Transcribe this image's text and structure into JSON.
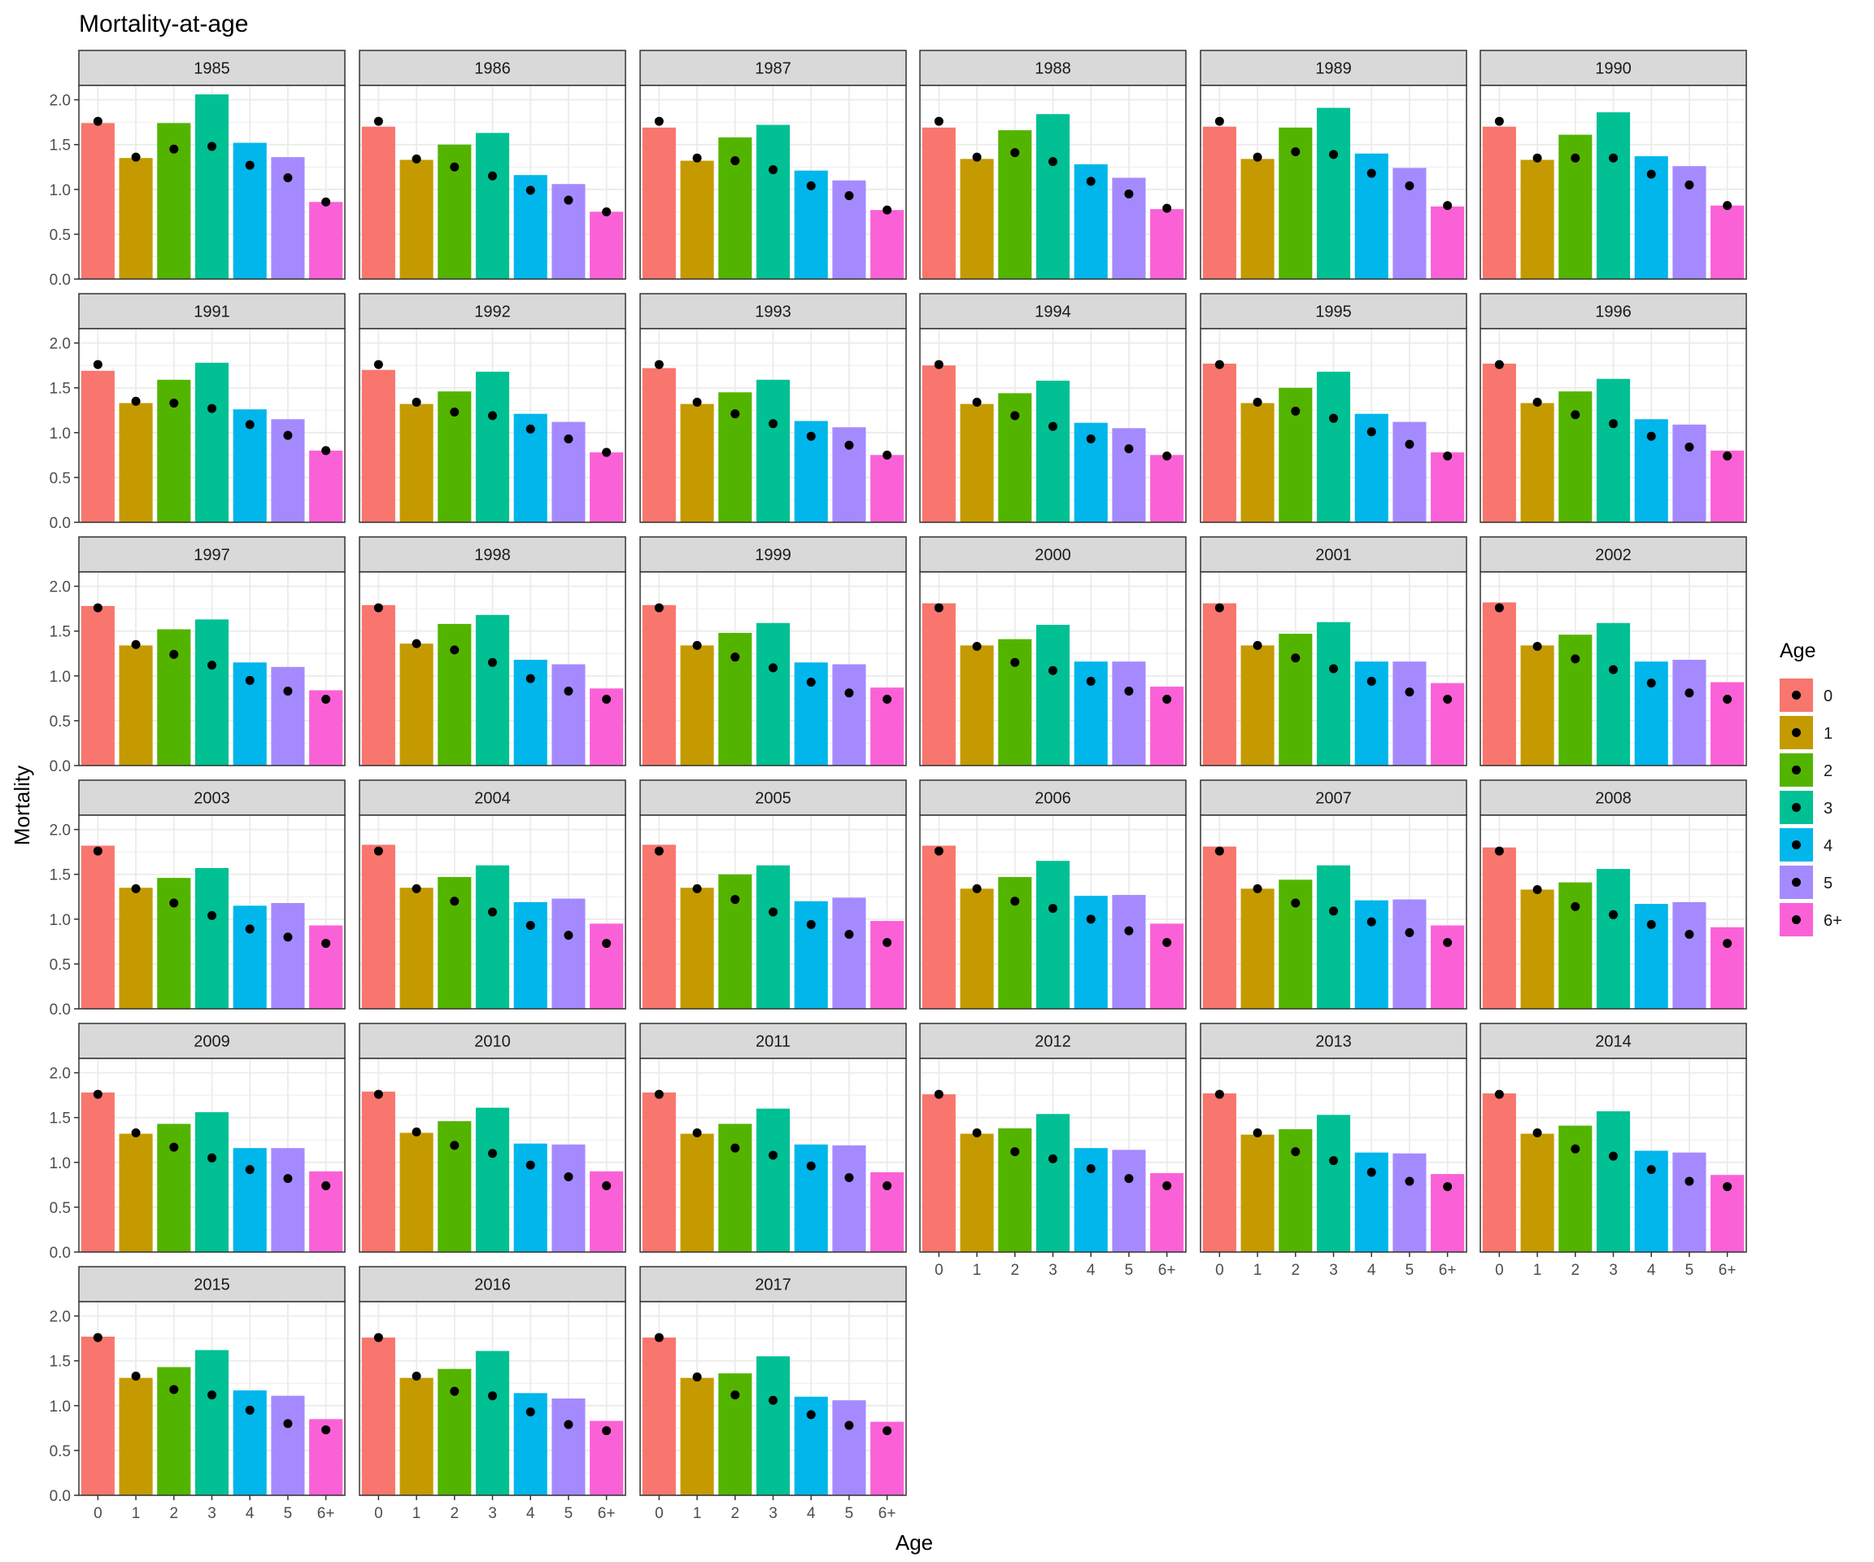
{
  "chart_data": {
    "type": "bar",
    "title": "Mortality-at-age",
    "xlabel": "Age",
    "ylabel": "Mortality",
    "ylim": [
      0,
      2.16
    ],
    "yticks": [
      "0.0",
      "0.5",
      "1.0",
      "1.5",
      "2.0"
    ],
    "categories": [
      "0",
      "1",
      "2",
      "3",
      "4",
      "5",
      "6+"
    ],
    "legend": {
      "title": "Age",
      "position": "right",
      "entries": [
        "0",
        "1",
        "2",
        "3",
        "4",
        "5",
        "6+"
      ]
    },
    "colors": [
      "#F8766D",
      "#C49A00",
      "#53B400",
      "#00C094",
      "#00B6EB",
      "#A58AFF",
      "#FB61D7"
    ],
    "point_color": "#000000",
    "grid": true,
    "facets": [
      {
        "label": "1985",
        "bars": [
          1.74,
          1.35,
          1.74,
          2.06,
          1.52,
          1.36,
          0.86
        ],
        "points": [
          1.76,
          1.36,
          1.45,
          1.48,
          1.27,
          1.13,
          0.86
        ]
      },
      {
        "label": "1986",
        "bars": [
          1.7,
          1.33,
          1.5,
          1.63,
          1.16,
          1.06,
          0.75
        ],
        "points": [
          1.76,
          1.34,
          1.25,
          1.15,
          0.99,
          0.88,
          0.75
        ]
      },
      {
        "label": "1987",
        "bars": [
          1.69,
          1.32,
          1.58,
          1.72,
          1.21,
          1.1,
          0.77
        ],
        "points": [
          1.76,
          1.35,
          1.32,
          1.22,
          1.04,
          0.93,
          0.77
        ]
      },
      {
        "label": "1988",
        "bars": [
          1.69,
          1.34,
          1.66,
          1.84,
          1.28,
          1.13,
          0.78
        ],
        "points": [
          1.76,
          1.36,
          1.41,
          1.31,
          1.09,
          0.95,
          0.79
        ]
      },
      {
        "label": "1989",
        "bars": [
          1.7,
          1.34,
          1.69,
          1.91,
          1.4,
          1.24,
          0.81
        ],
        "points": [
          1.76,
          1.36,
          1.42,
          1.39,
          1.18,
          1.04,
          0.82
        ]
      },
      {
        "label": "1990",
        "bars": [
          1.7,
          1.33,
          1.61,
          1.86,
          1.37,
          1.26,
          0.82
        ],
        "points": [
          1.76,
          1.35,
          1.35,
          1.35,
          1.17,
          1.05,
          0.82
        ]
      },
      {
        "label": "1991",
        "bars": [
          1.69,
          1.33,
          1.59,
          1.78,
          1.26,
          1.15,
          0.8
        ],
        "points": [
          1.76,
          1.35,
          1.33,
          1.27,
          1.09,
          0.97,
          0.8
        ]
      },
      {
        "label": "1992",
        "bars": [
          1.7,
          1.32,
          1.46,
          1.68,
          1.21,
          1.12,
          0.78
        ],
        "points": [
          1.76,
          1.34,
          1.23,
          1.19,
          1.04,
          0.93,
          0.78
        ]
      },
      {
        "label": "1993",
        "bars": [
          1.72,
          1.32,
          1.45,
          1.59,
          1.13,
          1.06,
          0.75
        ],
        "points": [
          1.76,
          1.34,
          1.21,
          1.1,
          0.96,
          0.86,
          0.75
        ]
      },
      {
        "label": "1994",
        "bars": [
          1.75,
          1.32,
          1.44,
          1.58,
          1.11,
          1.05,
          0.75
        ],
        "points": [
          1.76,
          1.34,
          1.19,
          1.07,
          0.93,
          0.82,
          0.74
        ]
      },
      {
        "label": "1995",
        "bars": [
          1.77,
          1.33,
          1.5,
          1.68,
          1.21,
          1.12,
          0.78
        ],
        "points": [
          1.76,
          1.34,
          1.24,
          1.16,
          1.01,
          0.87,
          0.74
        ]
      },
      {
        "label": "1996",
        "bars": [
          1.77,
          1.33,
          1.46,
          1.6,
          1.15,
          1.09,
          0.8
        ],
        "points": [
          1.76,
          1.34,
          1.2,
          1.1,
          0.96,
          0.84,
          0.74
        ]
      },
      {
        "label": "1997",
        "bars": [
          1.78,
          1.34,
          1.52,
          1.63,
          1.15,
          1.1,
          0.84
        ],
        "points": [
          1.76,
          1.35,
          1.24,
          1.12,
          0.95,
          0.83,
          0.74
        ]
      },
      {
        "label": "1998",
        "bars": [
          1.79,
          1.36,
          1.58,
          1.68,
          1.18,
          1.13,
          0.86
        ],
        "points": [
          1.76,
          1.36,
          1.29,
          1.15,
          0.97,
          0.83,
          0.74
        ]
      },
      {
        "label": "1999",
        "bars": [
          1.79,
          1.34,
          1.48,
          1.59,
          1.15,
          1.13,
          0.87
        ],
        "points": [
          1.76,
          1.34,
          1.21,
          1.09,
          0.93,
          0.81,
          0.74
        ]
      },
      {
        "label": "2000",
        "bars": [
          1.81,
          1.34,
          1.41,
          1.57,
          1.16,
          1.16,
          0.88
        ],
        "points": [
          1.76,
          1.33,
          1.15,
          1.06,
          0.94,
          0.83,
          0.74
        ]
      },
      {
        "label": "2001",
        "bars": [
          1.81,
          1.34,
          1.47,
          1.6,
          1.16,
          1.16,
          0.92
        ],
        "points": [
          1.76,
          1.34,
          1.2,
          1.08,
          0.94,
          0.82,
          0.74
        ]
      },
      {
        "label": "2002",
        "bars": [
          1.82,
          1.34,
          1.46,
          1.59,
          1.16,
          1.18,
          0.93
        ],
        "points": [
          1.76,
          1.33,
          1.19,
          1.07,
          0.92,
          0.81,
          0.74
        ]
      },
      {
        "label": "2003",
        "bars": [
          1.82,
          1.35,
          1.46,
          1.57,
          1.15,
          1.18,
          0.93
        ],
        "points": [
          1.76,
          1.34,
          1.18,
          1.04,
          0.89,
          0.8,
          0.73
        ]
      },
      {
        "label": "2004",
        "bars": [
          1.83,
          1.35,
          1.47,
          1.6,
          1.19,
          1.23,
          0.95
        ],
        "points": [
          1.76,
          1.34,
          1.2,
          1.08,
          0.93,
          0.82,
          0.73
        ]
      },
      {
        "label": "2005",
        "bars": [
          1.83,
          1.35,
          1.5,
          1.6,
          1.2,
          1.24,
          0.98
        ],
        "points": [
          1.76,
          1.34,
          1.22,
          1.08,
          0.94,
          0.83,
          0.74
        ]
      },
      {
        "label": "2006",
        "bars": [
          1.82,
          1.34,
          1.47,
          1.65,
          1.26,
          1.27,
          0.95
        ],
        "points": [
          1.76,
          1.34,
          1.2,
          1.12,
          1.0,
          0.87,
          0.74
        ]
      },
      {
        "label": "2007",
        "bars": [
          1.81,
          1.34,
          1.44,
          1.6,
          1.21,
          1.22,
          0.93
        ],
        "points": [
          1.76,
          1.34,
          1.18,
          1.09,
          0.97,
          0.85,
          0.74
        ]
      },
      {
        "label": "2008",
        "bars": [
          1.8,
          1.33,
          1.41,
          1.56,
          1.17,
          1.19,
          0.91
        ],
        "points": [
          1.76,
          1.33,
          1.14,
          1.05,
          0.94,
          0.83,
          0.73
        ]
      },
      {
        "label": "2009",
        "bars": [
          1.78,
          1.32,
          1.43,
          1.56,
          1.16,
          1.16,
          0.9
        ],
        "points": [
          1.76,
          1.33,
          1.17,
          1.05,
          0.92,
          0.82,
          0.74
        ]
      },
      {
        "label": "2010",
        "bars": [
          1.79,
          1.33,
          1.46,
          1.61,
          1.21,
          1.2,
          0.9
        ],
        "points": [
          1.76,
          1.34,
          1.19,
          1.1,
          0.97,
          0.84,
          0.74
        ]
      },
      {
        "label": "2011",
        "bars": [
          1.78,
          1.32,
          1.43,
          1.6,
          1.2,
          1.19,
          0.89
        ],
        "points": [
          1.76,
          1.33,
          1.16,
          1.08,
          0.96,
          0.83,
          0.74
        ]
      },
      {
        "label": "2012",
        "bars": [
          1.76,
          1.32,
          1.38,
          1.54,
          1.16,
          1.14,
          0.88
        ],
        "points": [
          1.76,
          1.33,
          1.12,
          1.04,
          0.93,
          0.82,
          0.74
        ]
      },
      {
        "label": "2013",
        "bars": [
          1.77,
          1.31,
          1.37,
          1.53,
          1.11,
          1.1,
          0.87
        ],
        "points": [
          1.76,
          1.33,
          1.12,
          1.02,
          0.89,
          0.79,
          0.73
        ]
      },
      {
        "label": "2014",
        "bars": [
          1.77,
          1.32,
          1.41,
          1.57,
          1.13,
          1.11,
          0.86
        ],
        "points": [
          1.76,
          1.33,
          1.15,
          1.07,
          0.92,
          0.79,
          0.73
        ]
      },
      {
        "label": "2015",
        "bars": [
          1.77,
          1.31,
          1.43,
          1.62,
          1.17,
          1.11,
          0.85
        ],
        "points": [
          1.76,
          1.33,
          1.18,
          1.12,
          0.95,
          0.8,
          0.73
        ]
      },
      {
        "label": "2016",
        "bars": [
          1.76,
          1.31,
          1.41,
          1.61,
          1.14,
          1.08,
          0.83
        ],
        "points": [
          1.76,
          1.33,
          1.16,
          1.11,
          0.93,
          0.79,
          0.72
        ]
      },
      {
        "label": "2017",
        "bars": [
          1.76,
          1.31,
          1.36,
          1.55,
          1.1,
          1.06,
          0.82
        ],
        "points": [
          1.76,
          1.32,
          1.12,
          1.06,
          0.9,
          0.78,
          0.72
        ]
      }
    ]
  }
}
